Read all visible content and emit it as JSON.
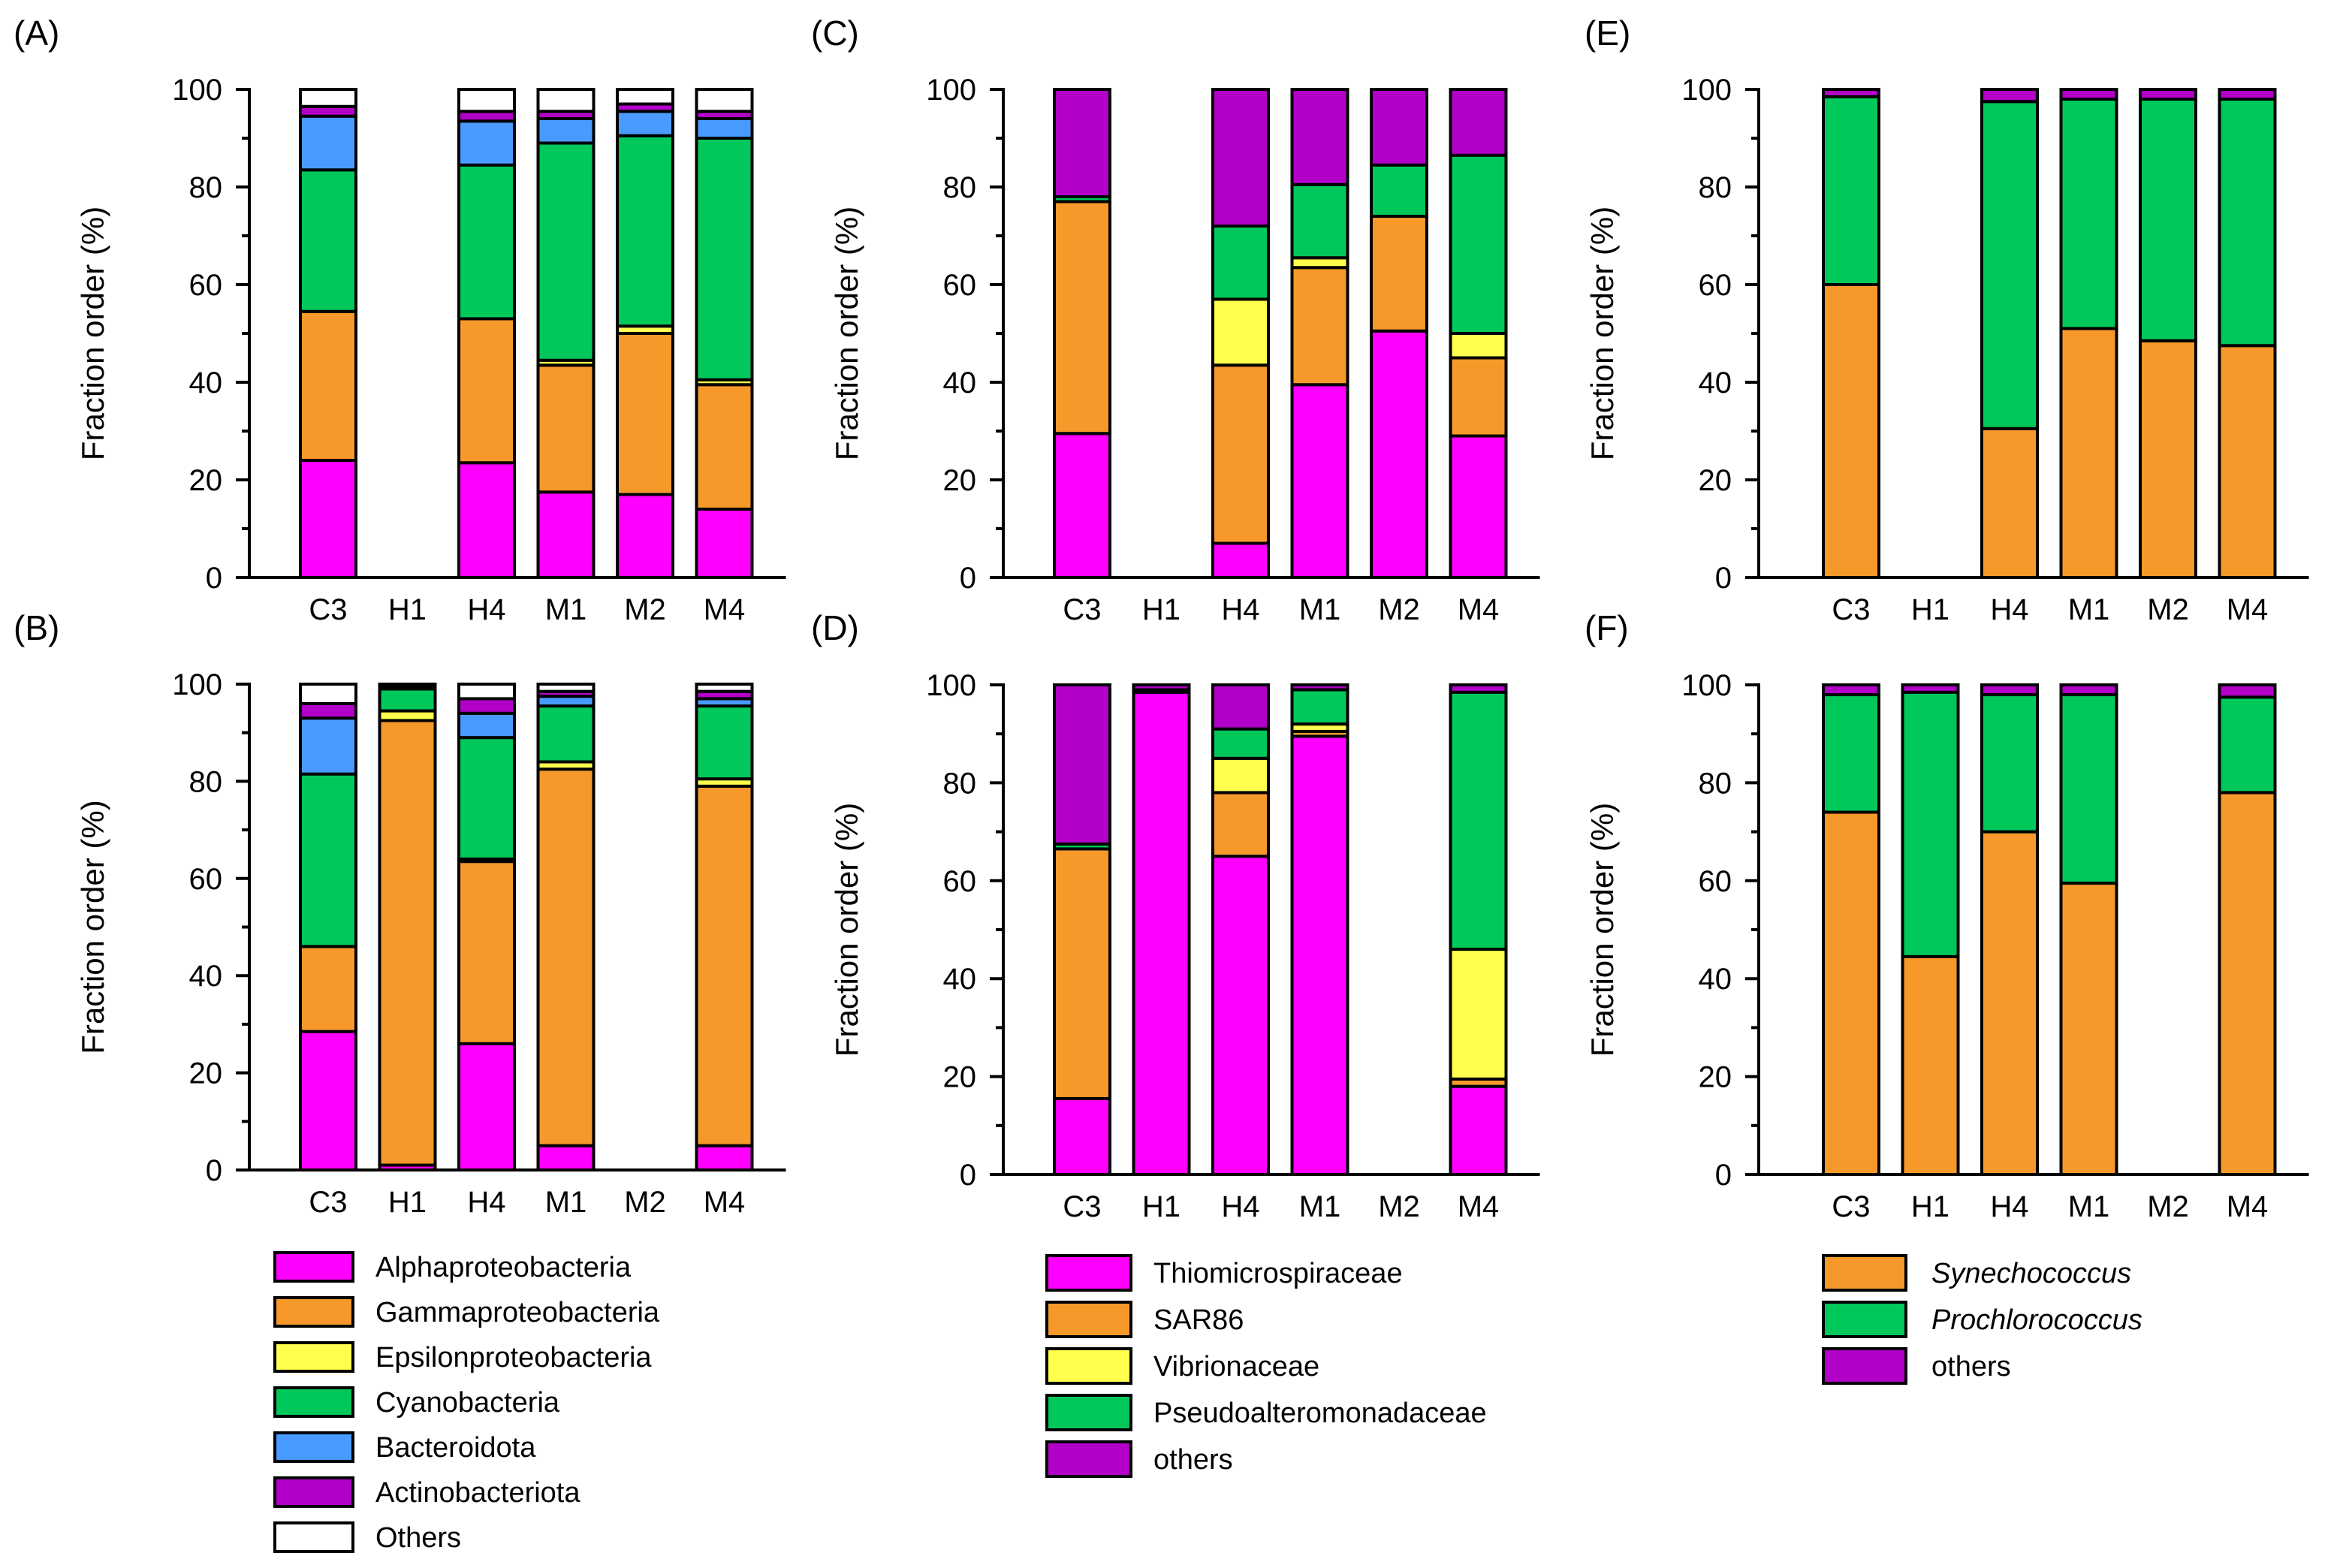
{
  "figure": {
    "legends": [
      {
        "id": "legend-class",
        "entries": [
          {
            "label": "Alphaproteobacteria",
            "color": "#ff00ff"
          },
          {
            "label": "Gammaproteobacteria",
            "color": "#f7982b"
          },
          {
            "label": "Epsilonproteobacteria",
            "color": "#ffff4d"
          },
          {
            "label": "Cyanobacteria",
            "color": "#00c85a"
          },
          {
            "label": "Bacteroidota",
            "color": "#4a9bff"
          },
          {
            "label": "Actinobacteriota",
            "color": "#b300c8"
          },
          {
            "label": "Others",
            "color": "#ffffff"
          }
        ]
      },
      {
        "id": "legend-gamma",
        "entries": [
          {
            "label": "Thiomicrospiraceae",
            "color": "#ff00ff"
          },
          {
            "label": "SAR86",
            "color": "#f7982b"
          },
          {
            "label": "Vibrionaceae",
            "color": "#ffff4d"
          },
          {
            "label": "Pseudoalteromonadaceae",
            "color": "#00c85a"
          },
          {
            "label": "others",
            "color": "#b300c8"
          }
        ]
      },
      {
        "id": "legend-cyano",
        "entries": [
          {
            "label": "Synechococcus",
            "color": "#f7982b",
            "italic": true
          },
          {
            "label": "Prochlorococcus",
            "color": "#00c85a",
            "italic": true
          },
          {
            "label": "others",
            "color": "#b300c8"
          }
        ]
      }
    ]
  },
  "chart_data": [
    {
      "panel": "(A)",
      "type": "bar",
      "stacked": true,
      "ylabel": "Fraction order (%)",
      "ylim": [
        0,
        100
      ],
      "yticks": [
        0,
        20,
        40,
        60,
        80,
        100
      ],
      "categories": [
        "C3",
        "H1",
        "H4",
        "M1",
        "M2",
        "M4"
      ],
      "series": [
        {
          "name": "Alphaproteobacteria",
          "color": "#ff00ff",
          "values": [
            24,
            0,
            23.5,
            17.5,
            17,
            14
          ]
        },
        {
          "name": "Gammaproteobacteria",
          "color": "#f7982b",
          "values": [
            30.5,
            0,
            29.5,
            26,
            33,
            25.5
          ]
        },
        {
          "name": "Epsilonproteobacteria",
          "color": "#ffff4d",
          "values": [
            0,
            0,
            0,
            1,
            1.5,
            1
          ]
        },
        {
          "name": "Cyanobacteria",
          "color": "#00c85a",
          "values": [
            29,
            0,
            31.5,
            44.5,
            39,
            49.5
          ]
        },
        {
          "name": "Bacteroidota",
          "color": "#4a9bff",
          "values": [
            11,
            0,
            9,
            5,
            5,
            4
          ]
        },
        {
          "name": "Actinobacteriota",
          "color": "#b300c8",
          "values": [
            2,
            0,
            2,
            1.5,
            1.5,
            1.5
          ]
        },
        {
          "name": "Others",
          "color": "#ffffff",
          "values": [
            3.5,
            0,
            4.5,
            4.5,
            3,
            4.5
          ]
        }
      ]
    },
    {
      "panel": "(B)",
      "type": "bar",
      "stacked": true,
      "ylabel": "Fraction order (%)",
      "ylim": [
        0,
        100
      ],
      "yticks": [
        0,
        20,
        40,
        60,
        80,
        100
      ],
      "categories": [
        "C3",
        "H1",
        "H4",
        "M1",
        "M2",
        "M4"
      ],
      "series": [
        {
          "name": "Alphaproteobacteria",
          "color": "#ff00ff",
          "values": [
            28.5,
            1,
            26,
            5,
            0,
            5
          ]
        },
        {
          "name": "Gammaproteobacteria",
          "color": "#f7982b",
          "values": [
            17.5,
            91.5,
            37.5,
            77.5,
            0,
            74
          ]
        },
        {
          "name": "Epsilonproteobacteria",
          "color": "#ffff4d",
          "values": [
            0,
            2,
            0.5,
            1.5,
            0,
            1.5
          ]
        },
        {
          "name": "Cyanobacteria",
          "color": "#00c85a",
          "values": [
            35.5,
            4.5,
            25,
            11.5,
            0,
            15
          ]
        },
        {
          "name": "Bacteroidota",
          "color": "#4a9bff",
          "values": [
            11.5,
            0,
            5,
            2,
            0,
            1.5
          ]
        },
        {
          "name": "Actinobacteriota",
          "color": "#b300c8",
          "values": [
            3,
            0.5,
            3,
            1,
            0,
            1.5
          ]
        },
        {
          "name": "Others",
          "color": "#ffffff",
          "values": [
            4,
            0.5,
            3,
            1.5,
            0,
            1.5
          ]
        }
      ]
    },
    {
      "panel": "(C)",
      "type": "bar",
      "stacked": true,
      "ylabel": "Fraction order (%)",
      "ylim": [
        0,
        100
      ],
      "yticks": [
        0,
        20,
        40,
        60,
        80,
        100
      ],
      "categories": [
        "C3",
        "H1",
        "H4",
        "M1",
        "M2",
        "M4"
      ],
      "series": [
        {
          "name": "Thiomicrospiraceae",
          "color": "#ff00ff",
          "values": [
            29.5,
            0,
            7,
            39.5,
            50.5,
            29
          ]
        },
        {
          "name": "SAR86",
          "color": "#f7982b",
          "values": [
            47.5,
            0,
            36.5,
            24,
            23.5,
            16
          ]
        },
        {
          "name": "Vibrionaceae",
          "color": "#ffff4d",
          "values": [
            0,
            0,
            13.5,
            2,
            0,
            5
          ]
        },
        {
          "name": "Pseudoalteromonadaceae",
          "color": "#00c85a",
          "values": [
            1,
            0,
            15,
            15,
            10.5,
            36.5
          ]
        },
        {
          "name": "others",
          "color": "#b300c8",
          "values": [
            22,
            0,
            28,
            19.5,
            15.5,
            13.5
          ]
        }
      ]
    },
    {
      "panel": "(D)",
      "type": "bar",
      "stacked": true,
      "ylabel": "Fraction order (%)",
      "ylim": [
        0,
        100
      ],
      "yticks": [
        0,
        20,
        40,
        60,
        80,
        100
      ],
      "categories": [
        "C3",
        "H1",
        "H4",
        "M1",
        "M2",
        "M4"
      ],
      "series": [
        {
          "name": "Thiomicrospiraceae",
          "color": "#ff00ff",
          "values": [
            15.5,
            98.5,
            65,
            89.5,
            0,
            18
          ]
        },
        {
          "name": "SAR86",
          "color": "#f7982b",
          "values": [
            51,
            0,
            13,
            1,
            0,
            1.5
          ]
        },
        {
          "name": "Vibrionaceae",
          "color": "#ffff4d",
          "values": [
            0,
            0,
            7,
            1.5,
            0,
            26.5
          ]
        },
        {
          "name": "Pseudoalteromonadaceae",
          "color": "#00c85a",
          "values": [
            1,
            0.5,
            6,
            7,
            0,
            52.5
          ]
        },
        {
          "name": "others",
          "color": "#b300c8",
          "values": [
            32.5,
            1,
            9,
            1,
            0,
            1.5
          ]
        }
      ]
    },
    {
      "panel": "(E)",
      "type": "bar",
      "stacked": true,
      "ylabel": "Fraction order (%)",
      "ylim": [
        0,
        100
      ],
      "yticks": [
        0,
        20,
        40,
        60,
        80,
        100
      ],
      "categories": [
        "C3",
        "H1",
        "H4",
        "M1",
        "M2",
        "M4"
      ],
      "series": [
        {
          "name": "Synechococcus",
          "color": "#f7982b",
          "values": [
            60,
            0,
            30.5,
            51,
            48.5,
            47.5
          ]
        },
        {
          "name": "Prochlorococcus",
          "color": "#00c85a",
          "values": [
            38.5,
            0,
            67,
            47,
            49.5,
            50.5
          ]
        },
        {
          "name": "others",
          "color": "#b300c8",
          "values": [
            1.5,
            0,
            2.5,
            2,
            2,
            2
          ]
        }
      ]
    },
    {
      "panel": "(F)",
      "type": "bar",
      "stacked": true,
      "ylabel": "Fraction order (%)",
      "ylim": [
        0,
        100
      ],
      "yticks": [
        0,
        20,
        40,
        60,
        80,
        100
      ],
      "categories": [
        "C3",
        "H1",
        "H4",
        "M1",
        "M2",
        "M4"
      ],
      "series": [
        {
          "name": "Synechococcus",
          "color": "#f7982b",
          "values": [
            74,
            44.5,
            70,
            59.5,
            0,
            78
          ]
        },
        {
          "name": "Prochlorococcus",
          "color": "#00c85a",
          "values": [
            24,
            54,
            28,
            38.5,
            0,
            19.5
          ]
        },
        {
          "name": "others",
          "color": "#b300c8",
          "values": [
            2,
            1.5,
            2,
            2,
            0,
            2.5
          ]
        }
      ]
    }
  ]
}
